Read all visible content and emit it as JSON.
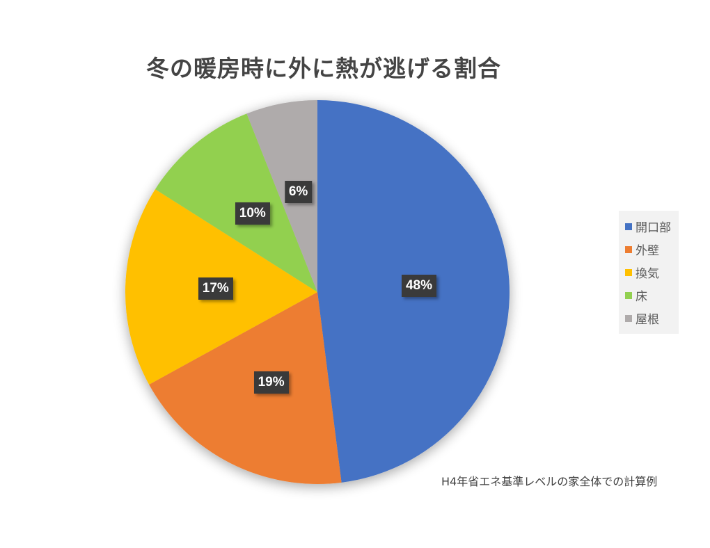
{
  "chart_data": {
    "type": "pie",
    "title": "冬の暖房時に外に熱が逃げる割合",
    "categories": [
      "開口部",
      "外壁",
      "換気",
      "床",
      "屋根"
    ],
    "values": [
      48,
      19,
      17,
      10,
      6
    ],
    "labels": [
      "48%",
      "19%",
      "17%",
      "10%",
      "6%"
    ],
    "colors": [
      "#4472C4",
      "#ED7D31",
      "#FFC000",
      "#92D050",
      "#AFABAB"
    ],
    "legend": "right",
    "start": "top",
    "direction": "clockwise",
    "note": "H4年省エネ基準レベルの家全体での計算例"
  }
}
